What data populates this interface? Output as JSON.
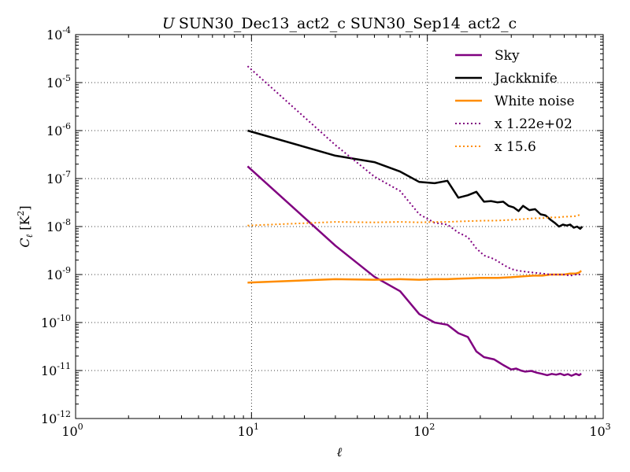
{
  "chart_data": {
    "type": "line",
    "title": "U SUN30_Dec13_act2_c SUN30_Sep14_act2_c",
    "title_prefix": "U",
    "title_main": "SUN30_Dec13_act2_c SUN30_Sep14_act2_c",
    "xlabel": "ℓ",
    "ylabel_symbol": "C",
    "ylabel_subscript": "ℓ",
    "ylabel_units": "[K",
    "ylabel_units_exp": "2",
    "ylabel_units_close": "]",
    "xscale": "log",
    "yscale": "log",
    "xlim": [
      1,
      1000
    ],
    "ylim": [
      1e-12,
      0.0001
    ],
    "grid": true,
    "legend_position": "top-right",
    "x_ticks": [
      {
        "base": "10",
        "exp": "0",
        "value": 1
      },
      {
        "base": "10",
        "exp": "1",
        "value": 10
      },
      {
        "base": "10",
        "exp": "2",
        "value": 100
      },
      {
        "base": "10",
        "exp": "3",
        "value": 1000
      }
    ],
    "y_ticks": [
      {
        "base": "10",
        "exp": "-12",
        "value": 1e-12
      },
      {
        "base": "10",
        "exp": "-11",
        "value": 1e-11
      },
      {
        "base": "10",
        "exp": "-10",
        "value": 1e-10
      },
      {
        "base": "10",
        "exp": "-9",
        "value": 1e-09
      },
      {
        "base": "10",
        "exp": "-8",
        "value": 1e-08
      },
      {
        "base": "10",
        "exp": "-7",
        "value": 1e-07
      },
      {
        "base": "10",
        "exp": "-6",
        "value": 1e-06
      },
      {
        "base": "10",
        "exp": "-5",
        "value": 1e-05
      },
      {
        "base": "10",
        "exp": "-4",
        "value": 0.0001
      }
    ],
    "series": [
      {
        "name": "Sky",
        "color": "#800080",
        "style": "solid",
        "x": [
          9.5,
          30,
          50,
          70,
          90,
          110,
          130,
          150,
          170,
          190,
          210,
          240,
          270,
          300,
          320,
          340,
          360,
          390,
          420,
          450,
          480,
          510,
          540,
          570,
          600,
          630,
          660,
          700,
          730,
          750
        ],
        "y": [
          1.8e-07,
          4e-09,
          9e-10,
          4.5e-10,
          1.5e-10,
          1e-10,
          9e-11,
          6e-11,
          5e-11,
          2.5e-11,
          1.9e-11,
          1.7e-11,
          1.3e-11,
          1.05e-11,
          1.1e-11,
          1e-11,
          9.5e-12,
          9.8e-12,
          9e-12,
          8.5e-12,
          8e-12,
          8.5e-12,
          8.2e-12,
          8.6e-12,
          8e-12,
          8.4e-12,
          7.8e-12,
          8.5e-12,
          8e-12,
          8.6e-12
        ]
      },
      {
        "name": "Jackknife",
        "color": "#000000",
        "style": "solid",
        "x": [
          9.5,
          30,
          50,
          70,
          90,
          110,
          130,
          150,
          170,
          190,
          210,
          230,
          250,
          270,
          290,
          310,
          330,
          350,
          380,
          410,
          440,
          470,
          500,
          530,
          560,
          590,
          620,
          650,
          680,
          710,
          740,
          760
        ],
        "y": [
          1e-06,
          3e-07,
          2.2e-07,
          1.4e-07,
          8.5e-08,
          8e-08,
          9e-08,
          4e-08,
          4.5e-08,
          5.3e-08,
          3.3e-08,
          3.4e-08,
          3.2e-08,
          3.3e-08,
          2.7e-08,
          2.5e-08,
          2.1e-08,
          2.7e-08,
          2.2e-08,
          2.3e-08,
          1.8e-08,
          1.7e-08,
          1.4e-08,
          1.2e-08,
          1e-08,
          1.1e-08,
          1.05e-08,
          1.1e-08,
          9.5e-09,
          1e-08,
          9e-09,
          1e-08
        ]
      },
      {
        "name": "White noise",
        "color": "#ff8c00",
        "style": "solid",
        "x": [
          9.5,
          30,
          50,
          70,
          90,
          110,
          130,
          150,
          170,
          200,
          250,
          300,
          350,
          400,
          450,
          500,
          550,
          600,
          650,
          700,
          730,
          750
        ],
        "y": [
          6.8e-10,
          8e-10,
          7.8e-10,
          8e-10,
          7.8e-10,
          8e-10,
          8e-10,
          8.2e-10,
          8.3e-10,
          8.5e-10,
          8.5e-10,
          8.8e-10,
          9.2e-10,
          9.5e-10,
          9.5e-10,
          1e-09,
          1e-09,
          1e-09,
          1.05e-09,
          1.05e-09,
          1.1e-09,
          1.2e-09
        ]
      },
      {
        "name": "x 1.22e+02",
        "color": "#800080",
        "style": "dotted",
        "x": [
          9.5,
          30,
          50,
          70,
          90,
          110,
          130,
          150,
          170,
          190,
          210,
          240,
          270,
          300,
          330,
          360,
          400,
          450,
          500,
          550,
          600,
          650,
          700,
          750
        ],
        "y": [
          2.2e-05,
          5e-07,
          1.1e-07,
          5.5e-08,
          1.8e-08,
          1.2e-08,
          1.1e-08,
          7.5e-09,
          6e-09,
          3.5e-09,
          2.5e-09,
          2.1e-09,
          1.6e-09,
          1.3e-09,
          1.2e-09,
          1.15e-09,
          1.1e-09,
          1.05e-09,
          1e-09,
          1e-09,
          1e-09,
          9.5e-10,
          1e-09,
          1e-09
        ]
      },
      {
        "name": "x 15.6",
        "color": "#ff8c00",
        "style": "dotted",
        "x": [
          9.5,
          30,
          50,
          70,
          90,
          110,
          130,
          150,
          200,
          250,
          300,
          350,
          400,
          450,
          500,
          550,
          600,
          650,
          700,
          750
        ],
        "y": [
          1.05e-08,
          1.25e-08,
          1.22e-08,
          1.25e-08,
          1.22e-08,
          1.25e-08,
          1.25e-08,
          1.28e-08,
          1.32e-08,
          1.33e-08,
          1.38e-08,
          1.43e-08,
          1.48e-08,
          1.5e-08,
          1.55e-08,
          1.55e-08,
          1.6e-08,
          1.62e-08,
          1.65e-08,
          1.8e-08
        ]
      }
    ]
  }
}
